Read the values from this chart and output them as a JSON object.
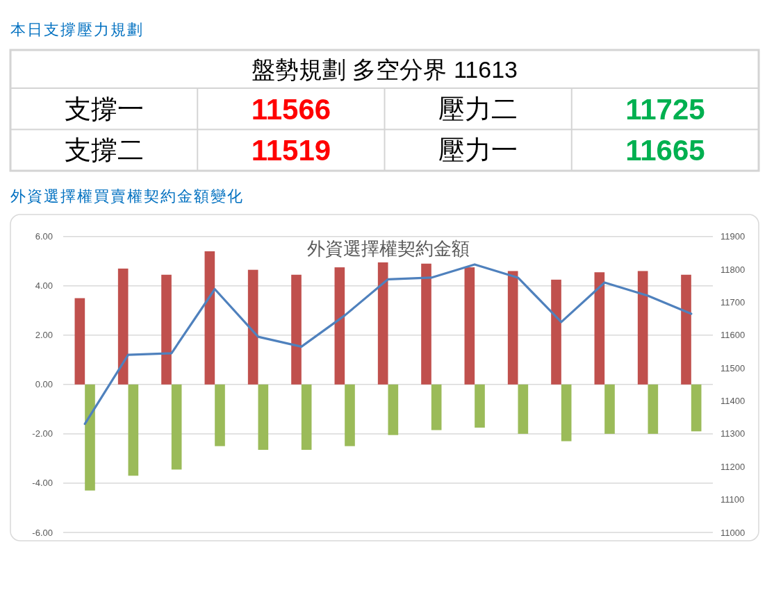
{
  "chart_data": [
    {
      "type": "other",
      "title": "本日支撐壓力規劃",
      "subtitle": "盤勢規劃 多空分界 11613",
      "categories": [
        "支撐一",
        "壓力二",
        "支撐二",
        "壓力一"
      ],
      "values": [
        11566,
        11725,
        11519,
        11665
      ],
      "colors": [
        "#ff0000",
        "#00b050",
        "#ff0000",
        "#00b050"
      ],
      "data_labels": true
    },
    {
      "type": "bar",
      "title": "外資選擇權買賣權契約金額變化",
      "subtitle": "外資選擇權契約金額",
      "categories": [
        null,
        null,
        null,
        null,
        null,
        null,
        null,
        null,
        null,
        null,
        null,
        null,
        null,
        null,
        null
      ],
      "series": [
        {
          "color": "#c0504d",
          "values": [
            3.5,
            4.7,
            4.45,
            5.4,
            4.65,
            4.45,
            4.75,
            4.95,
            4.9,
            4.75,
            4.6,
            4.25,
            4.55,
            4.6,
            4.45
          ]
        },
        {
          "color": "#9bbb59",
          "values": [
            -4.3,
            -3.7,
            -3.45,
            -2.5,
            -2.65,
            -2.65,
            -2.5,
            -2.05,
            -1.85,
            -1.75,
            -2.0,
            -2.3,
            -2.0,
            -2.0,
            -1.9
          ]
        },
        {
          "type": "line",
          "axis": "y2",
          "color": "#4f81bd",
          "values": [
            11330,
            11540,
            11545,
            11740,
            11595,
            11565,
            11660,
            11770,
            11775,
            11815,
            11775,
            11640,
            11760,
            11720,
            11665
          ]
        }
      ],
      "ylim": [
        -6,
        6
      ],
      "yticks": [
        {
          "value": -6,
          "label": "-6.00"
        },
        {
          "value": -4,
          "label": "-4.00"
        },
        {
          "value": -2,
          "label": "-2.00"
        },
        {
          "value": 0,
          "label": "0.00"
        },
        {
          "value": 2,
          "label": "2.00"
        },
        {
          "value": 4,
          "label": "4.00"
        },
        {
          "value": 6,
          "label": "6.00"
        }
      ],
      "y2lim": [
        11000,
        11900
      ],
      "y2ticks": [
        11000,
        11100,
        11200,
        11300,
        11400,
        11500,
        11600,
        11700,
        11800,
        11900
      ],
      "grid": "y"
    }
  ]
}
